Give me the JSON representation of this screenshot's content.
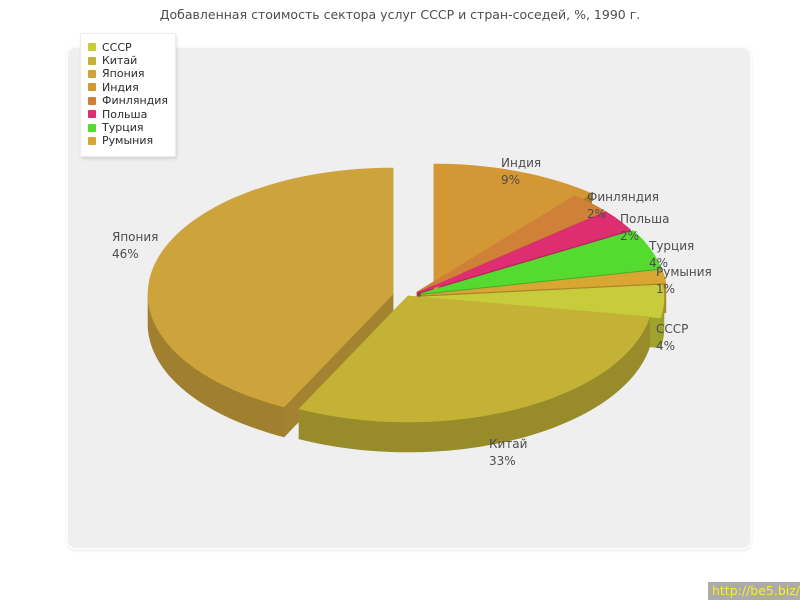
{
  "page": {
    "title": "Добавленная стоимость сектора услуг СССР и стран-соседей, %, 1990 г.",
    "watermark": "http://be5.biz/"
  },
  "chart_data": {
    "type": "pie",
    "title": "Добавленная стоимость сектора услуг СССР и стран-соседей, %, 1990 г.",
    "unit": "%",
    "value_suffix": "%",
    "legend_position": "top-left",
    "style": "3d-exploded",
    "labels": [
      "СССР",
      "Китай",
      "Япония",
      "Индия",
      "Финляндия",
      "Польша",
      "Турция",
      "Румыния"
    ],
    "values": [
      4,
      33,
      46,
      9,
      2,
      2,
      4,
      1
    ],
    "colors": [
      "#c6cc3a",
      "#c3b236",
      "#cda43c",
      "#d49735",
      "#d08138",
      "#de2d71",
      "#55da2f",
      "#d8a633"
    ],
    "background": "#efefef",
    "label_color": "#4d4d4d"
  }
}
